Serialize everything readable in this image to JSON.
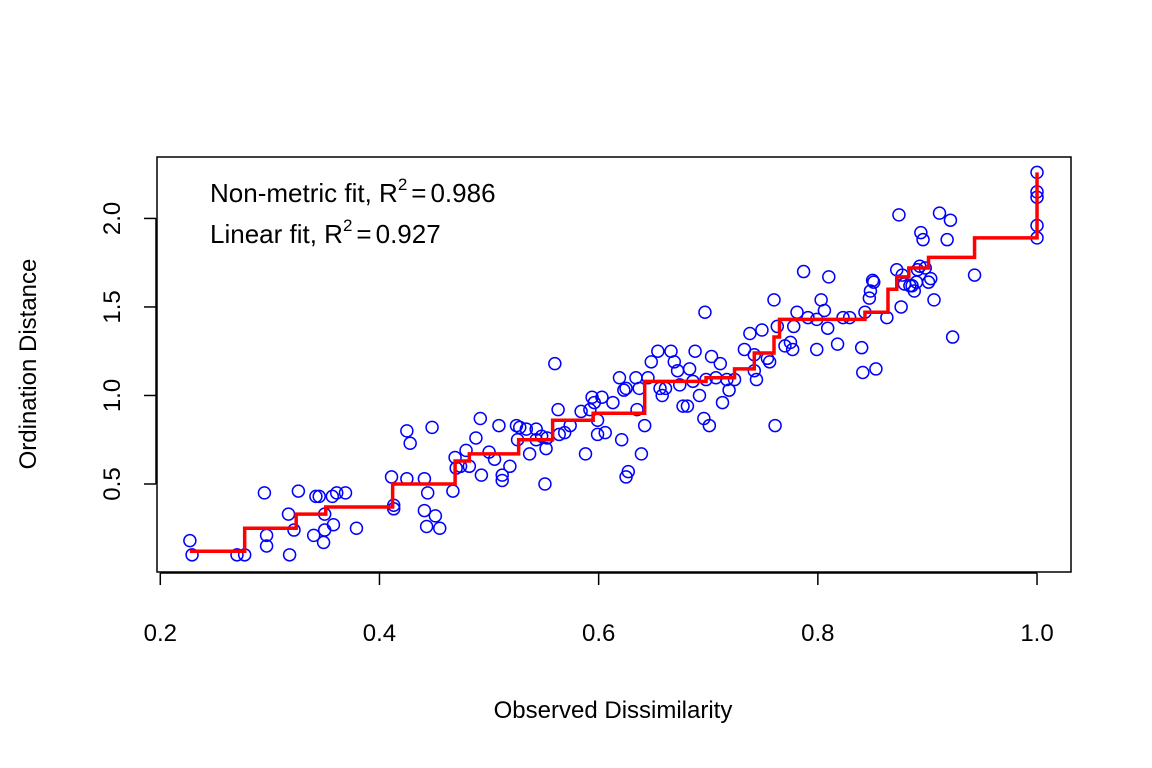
{
  "chart_data": {
    "type": "scatter",
    "xlabel": "Observed Dissimilarity",
    "ylabel": "Ordination Distance",
    "xlim": [
      0.197,
      1.031
    ],
    "ylim": [
      0.003,
      2.347
    ],
    "xticks": [
      0.2,
      0.4,
      0.6,
      0.8,
      {
        "value": 1,
        "label": "1.0"
      }
    ],
    "yticks": [
      0.5,
      {
        "value": 1,
        "label": "1.0"
      },
      1.5,
      {
        "value": 2,
        "label": "2.0"
      }
    ],
    "annotations": [
      {
        "text": "Non-metric fit, R",
        "exponent": "2",
        "operator": "=",
        "value": 0.986
      },
      {
        "text": "Linear fit, R",
        "exponent": "2",
        "operator": "=",
        "value": 0.927
      }
    ],
    "points": {
      "color": "#0000ff",
      "x": [
        0.227,
        0.229,
        0.27,
        0.277,
        0.295,
        0.297,
        0.297,
        0.318,
        0.317,
        0.322,
        0.326,
        0.34,
        0.342,
        0.345,
        0.349,
        0.35,
        0.35,
        0.357,
        0.358,
        0.361,
        0.369,
        0.379,
        0.411,
        0.413,
        0.413,
        0.425,
        0.428,
        0.425,
        0.441,
        0.441,
        0.443,
        0.444,
        0.448,
        0.451,
        0.455,
        0.467,
        0.469,
        0.47,
        0.474,
        0.479,
        0.482,
        0.488,
        0.492,
        0.493,
        0.5,
        0.505,
        0.509,
        0.512,
        0.512,
        0.519,
        0.525,
        0.526,
        0.528,
        0.534,
        0.537,
        0.543,
        0.543,
        0.548,
        0.551,
        0.552,
        0.553,
        0.56,
        0.563,
        0.564,
        0.569,
        0.574,
        0.584,
        0.588,
        0.592,
        0.594,
        0.596,
        0.599,
        0.599,
        0.603,
        0.606,
        0.613,
        0.619,
        0.621,
        0.623,
        0.625,
        0.625,
        0.627,
        0.634,
        0.635,
        0.637,
        0.639,
        0.642,
        0.645,
        0.648,
        0.654,
        0.656,
        0.658,
        0.661,
        0.666,
        0.669,
        0.672,
        0.674,
        0.677,
        0.681,
        0.683,
        0.686,
        0.688,
        0.692,
        0.697,
        0.696,
        0.698,
        0.701,
        0.703,
        0.707,
        0.711,
        0.713,
        0.717,
        0.719,
        0.724,
        0.733,
        0.738,
        0.742,
        0.742,
        0.744,
        0.749,
        0.754,
        0.756,
        0.76,
        0.761,
        0.763,
        0.77,
        0.775,
        0.777,
        0.778,
        0.781,
        0.787,
        0.791,
        0.799,
        0.799,
        0.803,
        0.806,
        0.809,
        0.81,
        0.818,
        0.823,
        0.829,
        0.84,
        0.841,
        0.843,
        0.847,
        0.848,
        0.85,
        0.851,
        0.853,
        0.863,
        0.872,
        0.874,
        0.876,
        0.877,
        0.879,
        0.884,
        0.886,
        0.888,
        0.89,
        0.891,
        0.893,
        0.894,
        0.896,
        0.898,
        0.901,
        0.903,
        0.906,
        0.911,
        0.918,
        0.921,
        0.923,
        0.943,
        1.0,
        1.0,
        1.0,
        1.0,
        1.0
      ],
      "y": [
        0.18,
        0.1,
        0.1,
        0.1,
        0.45,
        0.15,
        0.21,
        0.1,
        0.33,
        0.24,
        0.46,
        0.21,
        0.43,
        0.43,
        0.17,
        0.24,
        0.33,
        0.43,
        0.27,
        0.45,
        0.45,
        0.25,
        0.54,
        0.36,
        0.38,
        0.8,
        0.73,
        0.53,
        0.35,
        0.53,
        0.26,
        0.45,
        0.82,
        0.32,
        0.25,
        0.46,
        0.65,
        0.59,
        0.6,
        0.69,
        0.6,
        0.76,
        0.87,
        0.55,
        0.68,
        0.64,
        0.83,
        0.55,
        0.52,
        0.6,
        0.83,
        0.75,
        0.82,
        0.81,
        0.67,
        0.81,
        0.75,
        0.77,
        0.5,
        0.7,
        0.76,
        1.18,
        0.92,
        0.78,
        0.79,
        0.83,
        0.91,
        0.67,
        0.92,
        0.99,
        0.96,
        0.78,
        0.86,
        0.99,
        0.79,
        0.96,
        1.1,
        0.75,
        1.03,
        0.54,
        1.04,
        0.57,
        1.1,
        0.92,
        1.04,
        0.67,
        0.83,
        1.1,
        1.19,
        1.25,
        1.04,
        1.0,
        1.04,
        1.25,
        1.19,
        1.14,
        1.06,
        0.94,
        0.94,
        1.15,
        1.08,
        1.25,
        1.0,
        1.47,
        0.87,
        1.09,
        0.83,
        1.22,
        1.1,
        1.18,
        0.96,
        1.09,
        1.03,
        1.09,
        1.26,
        1.35,
        1.14,
        1.23,
        1.09,
        1.37,
        1.21,
        1.19,
        1.54,
        0.83,
        1.39,
        1.28,
        1.3,
        1.26,
        1.39,
        1.47,
        1.7,
        1.44,
        1.26,
        1.43,
        1.54,
        1.48,
        1.38,
        1.67,
        1.29,
        1.44,
        1.44,
        1.27,
        1.13,
        1.47,
        1.55,
        1.59,
        1.65,
        1.64,
        1.15,
        1.44,
        1.71,
        2.02,
        1.5,
        1.68,
        1.63,
        1.62,
        1.62,
        1.59,
        1.64,
        1.71,
        1.73,
        1.92,
        1.88,
        1.72,
        1.64,
        1.66,
        1.54,
        2.03,
        1.88,
        1.99,
        1.33,
        1.68,
        2.26,
        2.15,
        2.12,
        1.96,
        1.89
      ]
    },
    "fit": {
      "color": "#ff0000",
      "x": [
        0.227,
        0.277,
        0.324,
        0.351,
        0.412,
        0.469,
        0.482,
        0.527,
        0.558,
        0.595,
        0.642,
        0.698,
        0.724,
        0.742,
        0.76,
        0.765,
        0.843,
        0.864,
        0.872,
        0.883,
        0.901,
        0.943,
        1.0
      ],
      "y": [
        0.12,
        0.25,
        0.33,
        0.37,
        0.5,
        0.63,
        0.67,
        0.75,
        0.86,
        0.9,
        1.08,
        1.1,
        1.15,
        1.24,
        1.33,
        1.43,
        1.47,
        1.6,
        1.67,
        1.72,
        1.78,
        1.89,
        2.26
      ]
    }
  }
}
